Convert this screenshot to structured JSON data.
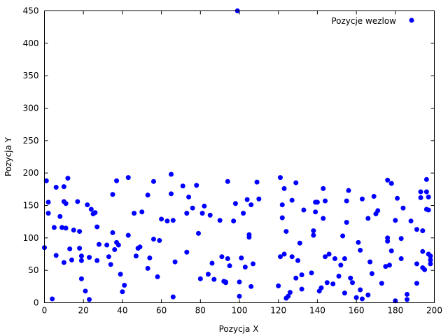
{
  "chart_data": {
    "type": "scatter",
    "title": "",
    "xlabel": "Pozycja X",
    "ylabel": "Pozycja Y",
    "xlim": [
      0,
      200
    ],
    "ylim": [
      0,
      450
    ],
    "xticks": [
      0,
      20,
      40,
      60,
      80,
      100,
      120,
      140,
      160,
      180,
      200
    ],
    "yticks": [
      0,
      50,
      100,
      150,
      200,
      250,
      300,
      350,
      400,
      450
    ],
    "grid": false,
    "legend_position": "top-right",
    "series": [
      {
        "name": "Pozycje wezlow",
        "color": "#0000ff",
        "points": [
          [
            0,
            85
          ],
          [
            1,
            188
          ],
          [
            2,
            138
          ],
          [
            2,
            155
          ],
          [
            4,
            6
          ],
          [
            5,
            116
          ],
          [
            6,
            73
          ],
          [
            6,
            178
          ],
          [
            8,
            133
          ],
          [
            9,
            116
          ],
          [
            10,
            179
          ],
          [
            10,
            156
          ],
          [
            10,
            62
          ],
          [
            11,
            115
          ],
          [
            11,
            153
          ],
          [
            12,
            192
          ],
          [
            13,
            83
          ],
          [
            14,
            66
          ],
          [
            15,
            112
          ],
          [
            17,
            156
          ],
          [
            18,
            110
          ],
          [
            18,
            84
          ],
          [
            19,
            37
          ],
          [
            19,
            72
          ],
          [
            19,
            65
          ],
          [
            21,
            18
          ],
          [
            22,
            151
          ],
          [
            23,
            5
          ],
          [
            23,
            70
          ],
          [
            24,
            144
          ],
          [
            25,
            137
          ],
          [
            26,
            139
          ],
          [
            27,
            65
          ],
          [
            27,
            117
          ],
          [
            28,
            90
          ],
          [
            32,
            89
          ],
          [
            33,
            71
          ],
          [
            34,
            59
          ],
          [
            35,
            108
          ],
          [
            35,
            167
          ],
          [
            36,
            82
          ],
          [
            37,
            188
          ],
          [
            37,
            93
          ],
          [
            38,
            89
          ],
          [
            39,
            44
          ],
          [
            40,
            17
          ],
          [
            41,
            27
          ],
          [
            43,
            193
          ],
          [
            43,
            104
          ],
          [
            46,
            138
          ],
          [
            47,
            72
          ],
          [
            48,
            84
          ],
          [
            49,
            86
          ],
          [
            50,
            140
          ],
          [
            53,
            166
          ],
          [
            53,
            53
          ],
          [
            54,
            69
          ],
          [
            56,
            98
          ],
          [
            56,
            187
          ],
          [
            58,
            40
          ],
          [
            59,
            96
          ],
          [
            60,
            129
          ],
          [
            63,
            126
          ],
          [
            65,
            168
          ],
          [
            65,
            198
          ],
          [
            66,
            9
          ],
          [
            66,
            127
          ],
          [
            67,
            63
          ],
          [
            71,
            180
          ],
          [
            73,
            78
          ],
          [
            73,
            138
          ],
          [
            74,
            163
          ],
          [
            76,
            146
          ],
          [
            78,
            181
          ],
          [
            79,
            107
          ],
          [
            80,
            37
          ],
          [
            81,
            138
          ],
          [
            82,
            149
          ],
          [
            84,
            44
          ],
          [
            85,
            135
          ],
          [
            86,
            61
          ],
          [
            87,
            36
          ],
          [
            90,
            127
          ],
          [
            91,
            71
          ],
          [
            92,
            33
          ],
          [
            93,
            31
          ],
          [
            93,
            32
          ],
          [
            94,
            187
          ],
          [
            94,
            68
          ],
          [
            95,
            57
          ],
          [
            97,
            126
          ],
          [
            98,
            153
          ],
          [
            99,
            450
          ],
          [
            100,
            32
          ],
          [
            100,
            10
          ],
          [
            101,
            69
          ],
          [
            102,
            138
          ],
          [
            103,
            55
          ],
          [
            104,
            159
          ],
          [
            105,
            105
          ],
          [
            105,
            101
          ],
          [
            106,
            25
          ],
          [
            106,
            151
          ],
          [
            107,
            60
          ],
          [
            109,
            186
          ],
          [
            110,
            160
          ],
          [
            120,
            26
          ],
          [
            121,
            71
          ],
          [
            121,
            193
          ],
          [
            122,
            131
          ],
          [
            122,
            151
          ],
          [
            123,
            176
          ],
          [
            123,
            75
          ],
          [
            124,
            110
          ],
          [
            124,
            7
          ],
          [
            125,
            10
          ],
          [
            126,
            16
          ],
          [
            127,
            71
          ],
          [
            127,
            158
          ],
          [
            129,
            185
          ],
          [
            129,
            38
          ],
          [
            130,
            65
          ],
          [
            131,
            92
          ],
          [
            132,
            21
          ],
          [
            132,
            43
          ],
          [
            133,
            143
          ],
          [
            137,
            46
          ],
          [
            138,
            111
          ],
          [
            138,
            104
          ],
          [
            139,
            155
          ],
          [
            139,
            140
          ],
          [
            140,
            155
          ],
          [
            141,
            18
          ],
          [
            142,
            23
          ],
          [
            143,
            176
          ],
          [
            143,
            130
          ],
          [
            144,
            157
          ],
          [
            144,
            71
          ],
          [
            145,
            31
          ],
          [
            146,
            75
          ],
          [
            148,
            29
          ],
          [
            149,
            68
          ],
          [
            151,
            41
          ],
          [
            152,
            58
          ],
          [
            153,
            103
          ],
          [
            154,
            68
          ],
          [
            154,
            15
          ],
          [
            155,
            157
          ],
          [
            155,
            124
          ],
          [
            156,
            173
          ],
          [
            157,
            38
          ],
          [
            158,
            31
          ],
          [
            160,
            8
          ],
          [
            161,
            93
          ],
          [
            162,
            81
          ],
          [
            162,
            20
          ],
          [
            163,
            160
          ],
          [
            163,
            6
          ],
          [
            166,
            12
          ],
          [
            167,
            63
          ],
          [
            166,
            130
          ],
          [
            168,
            45
          ],
          [
            169,
            164
          ],
          [
            170,
            137
          ],
          [
            171,
            142
          ],
          [
            173,
            30
          ],
          [
            175,
            56
          ],
          [
            176,
            189
          ],
          [
            176,
            95
          ],
          [
            176,
            100
          ],
          [
            177,
            58
          ],
          [
            178,
            80
          ],
          [
            178,
            184
          ],
          [
            180,
            3
          ],
          [
            180,
            127
          ],
          [
            181,
            161
          ],
          [
            183,
            68
          ],
          [
            183,
            99
          ],
          [
            184,
            146
          ],
          [
            186,
            13
          ],
          [
            186,
            5
          ],
          [
            188,
            126
          ],
          [
            191,
            30
          ],
          [
            191,
            60
          ],
          [
            191,
            113
          ],
          [
            193,
            171
          ],
          [
            193,
            162
          ],
          [
            194,
            111
          ],
          [
            194,
            79
          ],
          [
            194,
            54
          ],
          [
            195,
            51
          ],
          [
            196,
            171
          ],
          [
            196,
            190
          ],
          [
            196,
            144
          ],
          [
            197,
            163
          ],
          [
            197,
            143
          ],
          [
            197,
            75
          ],
          [
            198,
            72
          ],
          [
            198,
            66
          ],
          [
            198,
            60
          ]
        ]
      }
    ]
  }
}
